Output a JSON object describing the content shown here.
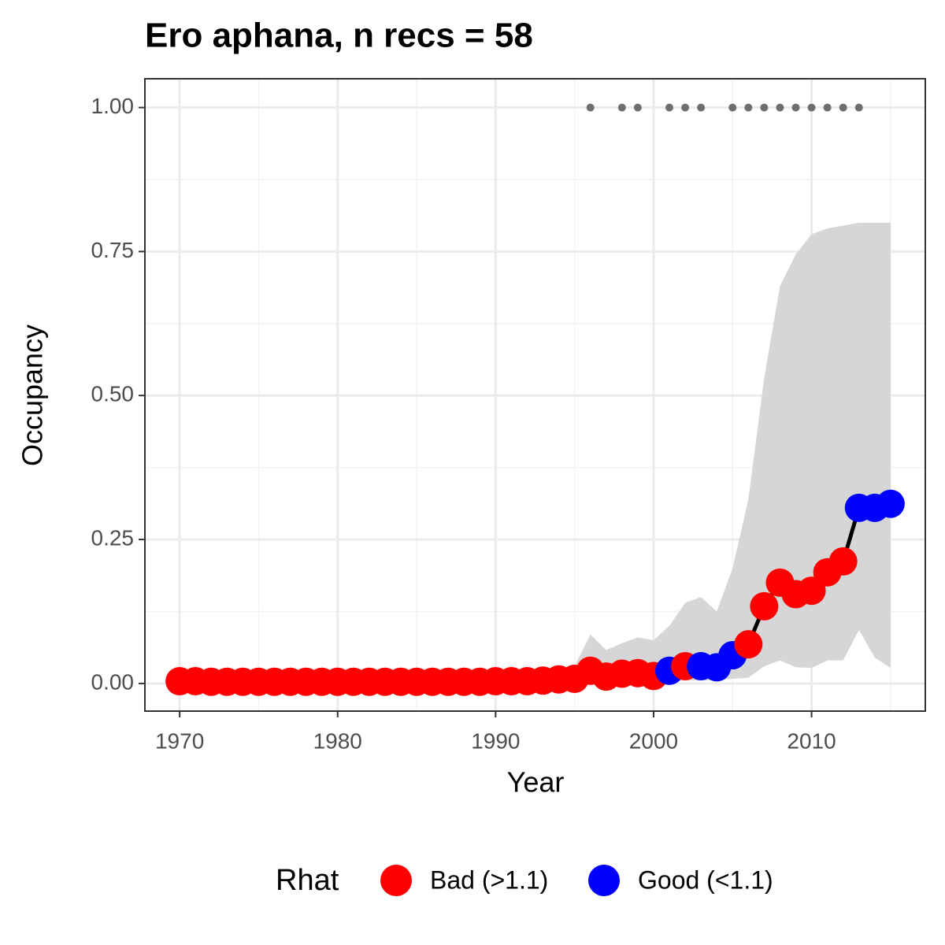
{
  "chart_data": {
    "type": "line",
    "title": "Ero aphana, n recs = 58",
    "x_label": "Year",
    "y_label": "Occupancy",
    "x": [
      1970,
      1971,
      1972,
      1973,
      1974,
      1975,
      1976,
      1977,
      1978,
      1979,
      1980,
      1981,
      1982,
      1983,
      1984,
      1985,
      1986,
      1987,
      1988,
      1989,
      1990,
      1991,
      1992,
      1993,
      1994,
      1995,
      1996,
      1997,
      1998,
      1999,
      2000,
      2001,
      2002,
      2003,
      2004,
      2005,
      2006,
      2007,
      2008,
      2009,
      2010,
      2011,
      2012,
      2013,
      2014,
      2015
    ],
    "values": [
      0.004,
      0.004,
      0.003,
      0.003,
      0.003,
      0.003,
      0.003,
      0.003,
      0.003,
      0.003,
      0.003,
      0.003,
      0.003,
      0.003,
      0.003,
      0.003,
      0.003,
      0.003,
      0.003,
      0.003,
      0.004,
      0.004,
      0.004,
      0.005,
      0.007,
      0.008,
      0.022,
      0.012,
      0.017,
      0.018,
      0.013,
      0.022,
      0.03,
      0.03,
      0.028,
      0.049,
      0.068,
      0.134,
      0.175,
      0.155,
      0.161,
      0.193,
      0.212,
      0.305,
      0.305,
      0.312
    ],
    "rhat_group": [
      0,
      0,
      0,
      0,
      0,
      0,
      0,
      0,
      0,
      0,
      0,
      0,
      0,
      0,
      0,
      0,
      0,
      0,
      0,
      0,
      0,
      0,
      0,
      0,
      0,
      0,
      0,
      0,
      0,
      0,
      0,
      1,
      0,
      1,
      1,
      1,
      0,
      0,
      0,
      0,
      0,
      0,
      0,
      1,
      1,
      1
    ],
    "lower": [
      0,
      0,
      0,
      0,
      0,
      0,
      0,
      0,
      0,
      0,
      0,
      0,
      0,
      0,
      0,
      0,
      0,
      0,
      0,
      0,
      0,
      0,
      0,
      0,
      0.001,
      0.003,
      0.004,
      0.004,
      0.004,
      0.004,
      0.004,
      0.005,
      0.005,
      0.005,
      0.006,
      0.008,
      0.01,
      0.03,
      0.04,
      0.028,
      0.027,
      0.04,
      0.04,
      0.093,
      0.045,
      0.027
    ],
    "upper": [
      0.01,
      0.01,
      0.01,
      0.01,
      0.01,
      0.01,
      0.01,
      0.01,
      0.01,
      0.01,
      0.01,
      0.01,
      0.01,
      0.01,
      0.01,
      0.01,
      0.01,
      0.01,
      0.01,
      0.01,
      0.012,
      0.012,
      0.013,
      0.015,
      0.02,
      0.03,
      0.085,
      0.058,
      0.07,
      0.08,
      0.075,
      0.1,
      0.14,
      0.15,
      0.125,
      0.2,
      0.32,
      0.53,
      0.69,
      0.745,
      0.78,
      0.79,
      0.795,
      0.8,
      0.8,
      0.8
    ],
    "ribbon_color": "#d6d6d6",
    "line_color": "#000000",
    "records_x": [
      1996,
      1998,
      1999,
      2001,
      2002,
      2003,
      2005,
      2006,
      2007,
      2008,
      2009,
      2010,
      2011,
      2012,
      2013
    ],
    "records_y": 1,
    "records_color": "#6e6e6e",
    "legend": {
      "title": "Rhat",
      "position": "bottom",
      "entries": [
        {
          "label": "Bad (>1.1)",
          "color": "#ff0000"
        },
        {
          "label": "Good (<1.1)",
          "color": "#0000ff"
        }
      ]
    },
    "xlim": [
      1967.8,
      2017.2
    ],
    "ylim": [
      -0.048,
      1.05
    ],
    "xticks": [
      1970,
      1980,
      1990,
      2000,
      2010
    ],
    "xminor": [
      1975,
      1985,
      1995,
      2005,
      2015
    ],
    "yticks": [
      {
        "value": 0,
        "label": "0.00"
      },
      {
        "value": 0.25,
        "label": "0.25"
      },
      {
        "value": 0.5,
        "label": "0.50"
      },
      {
        "value": 0.75,
        "label": "0.75"
      },
      {
        "value": 1,
        "label": "1.00"
      }
    ],
    "yminor": [
      0.125,
      0.375,
      0.625,
      0.875
    ],
    "grid": true
  }
}
